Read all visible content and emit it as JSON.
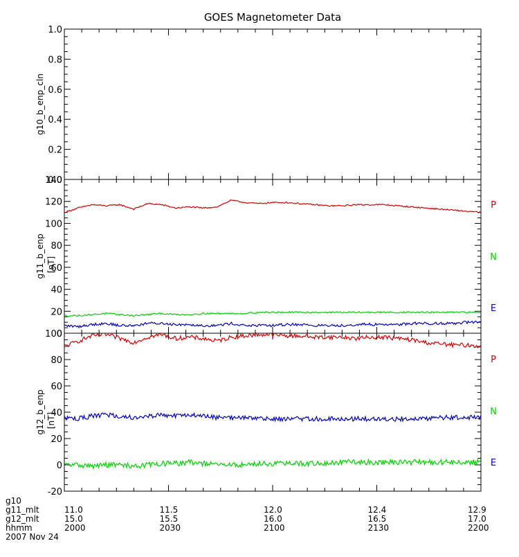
{
  "title": "GOES Magnetometer Data",
  "chart_data": [
    {
      "type": "line",
      "ylabel": "g10_b_enp_cln",
      "yunit": "",
      "ylim": [
        0.0,
        1.0
      ],
      "yticks": [
        "0.0",
        "0.2",
        "0.4",
        "0.6",
        "0.8",
        "1.0"
      ],
      "series": []
    },
    {
      "type": "line",
      "ylabel": "g11_b_enp",
      "yunit": "[nT]",
      "ylim": [
        0,
        140
      ],
      "yticks": [
        "0",
        "20",
        "40",
        "60",
        "80",
        "100",
        "120",
        "140"
      ],
      "x": [
        2000,
        2004,
        2008,
        2012,
        2016,
        2020,
        2024,
        2028,
        2032,
        2036,
        2040,
        2044,
        2048,
        2052,
        2056,
        2100,
        2104,
        2108,
        2112,
        2116,
        2120,
        2124,
        2128,
        2132,
        2136,
        2140,
        2144,
        2148,
        2152,
        2156,
        2200
      ],
      "series": [
        {
          "name": "P",
          "color": "#d00000",
          "noise": 0.6,
          "values": [
            110,
            114,
            117,
            116,
            117,
            113,
            118,
            117,
            114,
            115,
            114,
            115,
            121,
            119,
            118,
            119,
            119,
            118,
            117,
            116,
            116,
            117,
            117,
            117,
            116,
            115,
            114,
            113,
            112,
            111,
            110
          ]
        },
        {
          "name": "N",
          "color": "#00d000",
          "noise": 0.7,
          "values": [
            16,
            16,
            17,
            18,
            17,
            16,
            17,
            18,
            17,
            17,
            18,
            18,
            18,
            18,
            19,
            19,
            19,
            19,
            19,
            19,
            19,
            19,
            19,
            19,
            19,
            19,
            19,
            19,
            19,
            19,
            19
          ]
        },
        {
          "name": "E",
          "color": "#0000b8",
          "noise": 1.2,
          "values": [
            7,
            6,
            8,
            9,
            7,
            7,
            9,
            9,
            8,
            8,
            7,
            7,
            9,
            7,
            7,
            7,
            8,
            8,
            7,
            7,
            7,
            8,
            8,
            8,
            8,
            9,
            9,
            9,
            9,
            10,
            10
          ]
        }
      ]
    },
    {
      "type": "line",
      "ylabel": "g12_b_enp",
      "yunit": "[nT]",
      "ylim": [
        -20,
        100
      ],
      "yticks": [
        "-20",
        "0",
        "20",
        "40",
        "60",
        "80",
        "100"
      ],
      "x": [
        2000,
        2004,
        2008,
        2012,
        2016,
        2020,
        2024,
        2028,
        2032,
        2036,
        2040,
        2044,
        2048,
        2052,
        2056,
        2100,
        2104,
        2108,
        2112,
        2116,
        2120,
        2124,
        2128,
        2132,
        2136,
        2140,
        2144,
        2148,
        2152,
        2156,
        2200
      ],
      "series": [
        {
          "name": "P",
          "color": "#d00000",
          "noise": 1.6,
          "values": [
            90,
            94,
            98,
            99,
            96,
            93,
            97,
            99,
            96,
            97,
            96,
            94,
            97,
            98,
            99,
            99,
            98,
            98,
            97,
            97,
            97,
            96,
            97,
            97,
            96,
            95,
            93,
            92,
            91,
            91,
            90
          ]
        },
        {
          "name": "N",
          "color": "#00d000",
          "noise": 2.0,
          "values": [
            0,
            0,
            -1,
            0,
            0,
            -1,
            0,
            1,
            1,
            2,
            1,
            0,
            0,
            0,
            1,
            1,
            1,
            1,
            1,
            1,
            2,
            2,
            2,
            2,
            2,
            2,
            2,
            2,
            2,
            2,
            2
          ]
        },
        {
          "name": "E",
          "color": "#0000b8",
          "noise": 1.8,
          "values": [
            36,
            35,
            37,
            38,
            37,
            36,
            37,
            38,
            37,
            38,
            37,
            36,
            36,
            36,
            35,
            35,
            35,
            35,
            35,
            35,
            35,
            35,
            35,
            35,
            35,
            35,
            35,
            36,
            36,
            36,
            36
          ]
        }
      ]
    }
  ],
  "xaxis": {
    "rows": [
      {
        "label": "g10",
        "values": [
          "",
          "",
          "",
          "",
          ""
        ]
      },
      {
        "label": "g11_mlt",
        "values": [
          "11.0",
          "11.5",
          "12.0",
          "12.4",
          "12.9"
        ]
      },
      {
        "label": "g12_mlt",
        "values": [
          "15.0",
          "15.5",
          "16.0",
          "16.5",
          "17.0"
        ]
      },
      {
        "label": "hhmm",
        "values": [
          "2000",
          "2030",
          "2100",
          "2130",
          "2200"
        ]
      }
    ],
    "date": "2007 Nov 24"
  }
}
